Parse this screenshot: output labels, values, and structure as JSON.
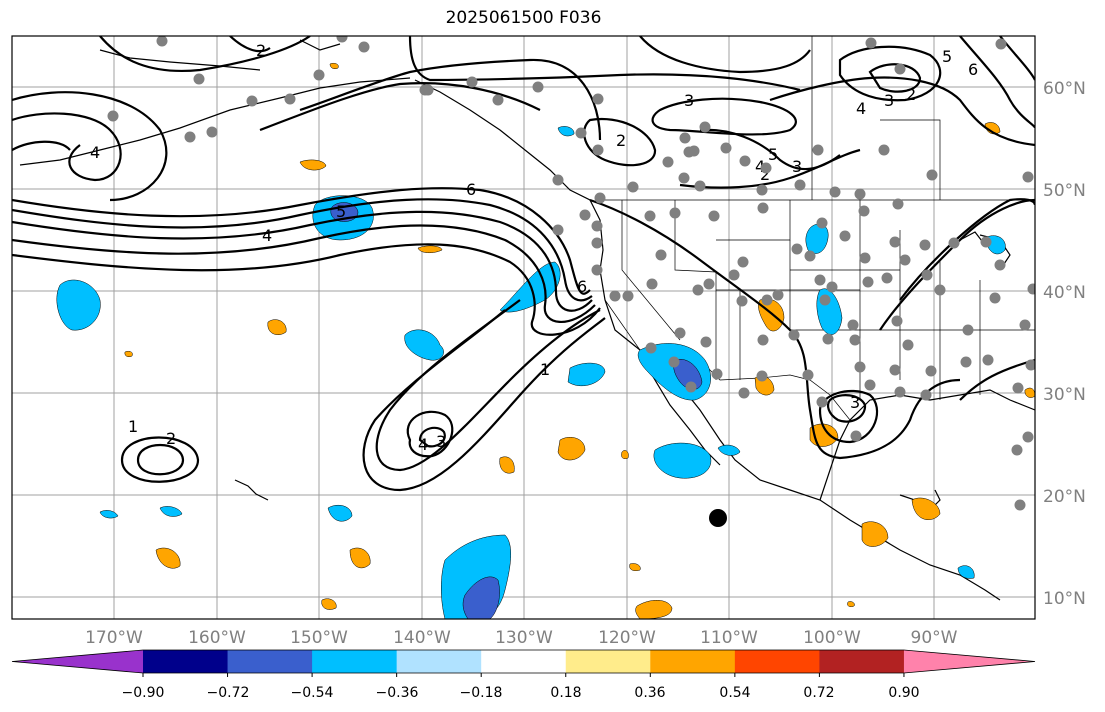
{
  "title": "2025061500 F036",
  "latitude_labels": [
    "10°N",
    "20°N",
    "30°N",
    "40°N",
    "50°N",
    "60°N"
  ],
  "longitude_labels": [
    "170°W",
    "160°W",
    "150°W",
    "140°W",
    "130°W",
    "120°W",
    "110°W",
    "100°W",
    "90°W"
  ],
  "colorbar": {
    "tick_labels": [
      "−0.90",
      "−0.72",
      "−0.54",
      "−0.36",
      "−0.18",
      "0.18",
      "0.36",
      "0.54",
      "0.72",
      "0.90"
    ],
    "colors": [
      "#9932cc",
      "#00008b",
      "#3a5fcd",
      "#00bfff",
      "#b0e2ff",
      "#ffffff",
      "#ffec8b",
      "#ffa500",
      "#ff4500",
      "#b22222",
      "#ff82ab"
    ]
  },
  "contour_labels": [
    "1",
    "2",
    "3",
    "4",
    "5",
    "6"
  ],
  "colors": {
    "gridline": "#a0a0a0",
    "station": "#808080",
    "contour": "#000000"
  }
}
